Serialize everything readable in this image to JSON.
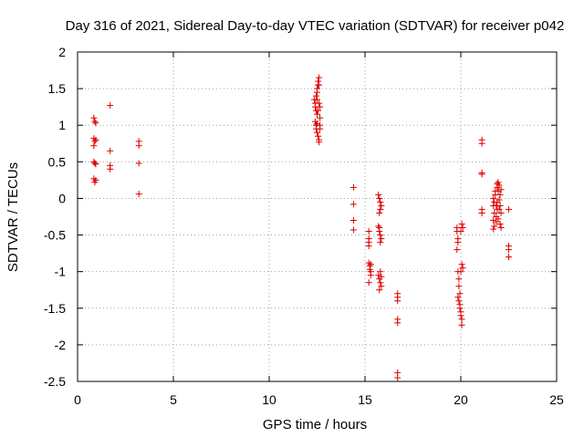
{
  "chart_data": {
    "type": "scatter",
    "title": "Day 316 of 2021, Sidereal Day-to-day VTEC variation (SDTVAR) for receiver p042",
    "xlabel": "GPS time / hours",
    "ylabel": "SDTVAR / TECUs",
    "xlim": [
      0,
      25
    ],
    "ylim": [
      -2.5,
      2
    ],
    "xticks": [
      0,
      5,
      10,
      15,
      20,
      25
    ],
    "yticks": [
      -2.5,
      -2,
      -1.5,
      -1,
      -0.5,
      0,
      0.5,
      1,
      1.5,
      2
    ],
    "xtick_labels": [
      "0",
      "5",
      "10",
      "15",
      "20",
      "25"
    ],
    "ytick_labels": [
      "-2.5",
      "-2",
      "-1.5",
      "-1",
      "-0.5",
      "0",
      "0.5",
      "1",
      "1.5",
      "2"
    ],
    "grid": true,
    "marker": "+",
    "marker_color": "#dd0000",
    "series": [
      {
        "name": "SDTVAR",
        "points": [
          [
            0.85,
            1.1
          ],
          [
            0.9,
            1.05
          ],
          [
            0.95,
            1.03
          ],
          [
            0.85,
            0.82
          ],
          [
            0.9,
            0.78
          ],
          [
            0.85,
            0.72
          ],
          [
            0.95,
            0.8
          ],
          [
            0.85,
            0.5
          ],
          [
            0.9,
            0.48
          ],
          [
            0.95,
            0.47
          ],
          [
            0.85,
            0.27
          ],
          [
            0.9,
            0.22
          ],
          [
            0.95,
            0.25
          ],
          [
            1.7,
            1.27
          ],
          [
            1.7,
            0.65
          ],
          [
            1.7,
            0.45
          ],
          [
            1.7,
            0.4
          ],
          [
            3.2,
            0.78
          ],
          [
            3.2,
            0.72
          ],
          [
            3.2,
            0.48
          ],
          [
            3.2,
            0.06
          ],
          [
            12.35,
            1.35
          ],
          [
            12.4,
            1.3
          ],
          [
            12.4,
            1.25
          ],
          [
            12.45,
            1.4
          ],
          [
            12.45,
            1.2
          ],
          [
            12.5,
            1.5
          ],
          [
            12.5,
            1.45
          ],
          [
            12.5,
            1.15
          ],
          [
            12.55,
            1.55
          ],
          [
            12.55,
            1.6
          ],
          [
            12.6,
            1.65
          ],
          [
            12.6,
            1.55
          ],
          [
            12.6,
            1.3
          ],
          [
            12.65,
            1.25
          ],
          [
            12.65,
            1.1
          ],
          [
            12.4,
            1.05
          ],
          [
            12.45,
            1.0
          ],
          [
            12.45,
            0.95
          ],
          [
            12.5,
            1.02
          ],
          [
            12.5,
            0.9
          ],
          [
            12.55,
            0.85
          ],
          [
            12.6,
            0.8
          ],
          [
            12.6,
            0.77
          ],
          [
            12.65,
            0.95
          ],
          [
            12.65,
            1.0
          ],
          [
            12.55,
            1.2
          ],
          [
            12.5,
            1.35
          ],
          [
            14.4,
            0.15
          ],
          [
            14.4,
            -0.08
          ],
          [
            14.4,
            -0.3
          ],
          [
            14.4,
            -0.43
          ],
          [
            15.2,
            -0.45
          ],
          [
            15.2,
            -0.55
          ],
          [
            15.2,
            -0.6
          ],
          [
            15.2,
            -0.65
          ],
          [
            15.2,
            -0.88
          ],
          [
            15.25,
            -0.92
          ],
          [
            15.25,
            -0.97
          ],
          [
            15.3,
            -1.0
          ],
          [
            15.3,
            -1.05
          ],
          [
            15.2,
            -1.15
          ],
          [
            15.3,
            -0.9
          ],
          [
            15.7,
            0.05
          ],
          [
            15.75,
            0.0
          ],
          [
            15.8,
            -0.05
          ],
          [
            15.85,
            -0.1
          ],
          [
            15.8,
            -0.15
          ],
          [
            15.75,
            -0.2
          ],
          [
            15.7,
            -0.38
          ],
          [
            15.75,
            -0.45
          ],
          [
            15.8,
            -0.5
          ],
          [
            15.85,
            -0.55
          ],
          [
            15.8,
            -0.6
          ],
          [
            15.75,
            -0.4
          ],
          [
            15.7,
            -1.05
          ],
          [
            15.75,
            -1.1
          ],
          [
            15.8,
            -1.15
          ],
          [
            15.85,
            -1.2
          ],
          [
            15.75,
            -1.25
          ],
          [
            15.8,
            -1.0
          ],
          [
            15.85,
            -1.07
          ],
          [
            16.7,
            -1.3
          ],
          [
            16.7,
            -1.35
          ],
          [
            16.7,
            -1.4
          ],
          [
            16.7,
            -1.65
          ],
          [
            16.7,
            -1.7
          ],
          [
            16.7,
            -2.38
          ],
          [
            16.7,
            -2.45
          ],
          [
            19.8,
            -0.4
          ],
          [
            19.8,
            -0.45
          ],
          [
            19.85,
            -0.55
          ],
          [
            19.85,
            -0.6
          ],
          [
            19.8,
            -0.7
          ],
          [
            19.85,
            -1.0
          ],
          [
            19.9,
            -1.1
          ],
          [
            19.9,
            -1.2
          ],
          [
            19.95,
            -1.3
          ],
          [
            19.9,
            -1.4
          ],
          [
            19.95,
            -1.5
          ],
          [
            20.0,
            -1.55
          ],
          [
            20.0,
            -1.6
          ],
          [
            20.05,
            -1.65
          ],
          [
            20.05,
            -1.73
          ],
          [
            19.85,
            -1.35
          ],
          [
            19.95,
            -1.45
          ],
          [
            20.05,
            -0.35
          ],
          [
            20.1,
            -0.4
          ],
          [
            20.0,
            -0.45
          ],
          [
            20.05,
            -0.9
          ],
          [
            20.1,
            -0.95
          ],
          [
            20.0,
            -1.0
          ],
          [
            21.1,
            0.8
          ],
          [
            21.1,
            0.75
          ],
          [
            21.1,
            0.35
          ],
          [
            21.1,
            0.33
          ],
          [
            21.1,
            -0.15
          ],
          [
            21.1,
            -0.2
          ],
          [
            21.7,
            0.0
          ],
          [
            21.75,
            -0.05
          ],
          [
            21.7,
            -0.1
          ],
          [
            21.75,
            -0.2
          ],
          [
            21.7,
            -0.3
          ],
          [
            21.75,
            -0.38
          ],
          [
            21.7,
            -0.42
          ],
          [
            21.8,
            0.1
          ],
          [
            21.8,
            0.05
          ],
          [
            21.85,
            -0.1
          ],
          [
            21.85,
            -0.25
          ],
          [
            21.9,
            0.15
          ],
          [
            21.9,
            0.2
          ],
          [
            21.9,
            -0.05
          ],
          [
            21.95,
            0.22
          ],
          [
            21.95,
            0.1
          ],
          [
            22.0,
            0.18
          ],
          [
            22.0,
            -0.02
          ],
          [
            22.0,
            -0.15
          ],
          [
            22.05,
            0.05
          ],
          [
            22.05,
            -0.35
          ],
          [
            22.1,
            -0.4
          ],
          [
            22.1,
            -0.2
          ],
          [
            22.1,
            0.12
          ],
          [
            21.85,
            -0.32
          ],
          [
            21.95,
            -0.28
          ],
          [
            22.05,
            -0.1
          ],
          [
            21.9,
            -0.15
          ],
          [
            22.5,
            -0.15
          ],
          [
            22.5,
            -0.65
          ],
          [
            22.5,
            -0.7
          ],
          [
            22.5,
            -0.8
          ]
        ]
      }
    ]
  }
}
